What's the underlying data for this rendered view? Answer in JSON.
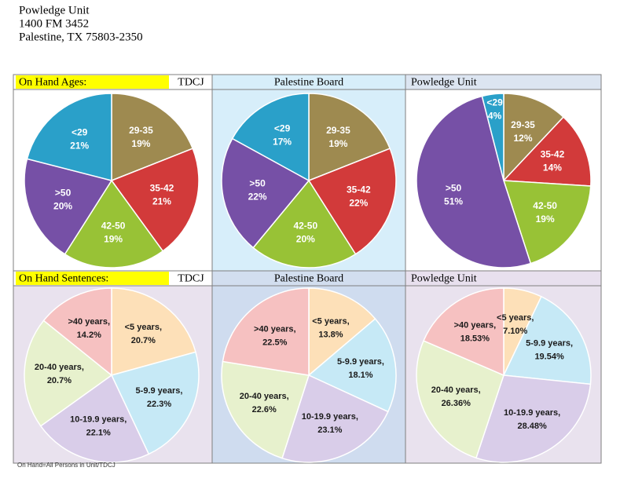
{
  "header": {
    "lines": [
      "Powledge Unit",
      "1400 FM 3452",
      "Palestine, TX 75803-2350"
    ]
  },
  "sections": [
    {
      "label": "On Hand Ages:"
    },
    {
      "label": "On Hand Sentences:"
    }
  ],
  "chart_data": [
    {
      "type": "pie",
      "title": "TDCJ",
      "categories": [
        "29-35",
        "35-42",
        "42-50",
        ">50",
        "<29"
      ],
      "values": [
        19,
        21,
        19,
        20,
        21
      ],
      "value_labels": [
        "19%",
        "21%",
        "19%",
        "20%",
        "21%"
      ],
      "colors": [
        "#9e8a50",
        "#d23a3a",
        "#98c236",
        "#7650a6",
        "#2aa0c9"
      ],
      "label_color": "#ffffff"
    },
    {
      "type": "pie",
      "title": "Palestine Board",
      "categories": [
        "29-35",
        "35-42",
        "42-50",
        ">50",
        "<29"
      ],
      "values": [
        19,
        22,
        20,
        22,
        17
      ],
      "value_labels": [
        "19%",
        "22%",
        "20%",
        "22%",
        "17%"
      ],
      "colors": [
        "#9e8a50",
        "#d23a3a",
        "#98c236",
        "#7650a6",
        "#2aa0c9"
      ],
      "label_color": "#ffffff"
    },
    {
      "type": "pie",
      "title": "Powledge Unit",
      "categories": [
        "29-35",
        "35-42",
        "42-50",
        ">50",
        "<29"
      ],
      "values": [
        12,
        14,
        19,
        51,
        4
      ],
      "value_labels": [
        "12%",
        "14%",
        "19%",
        "51%",
        "4%"
      ],
      "colors": [
        "#9e8a50",
        "#d23a3a",
        "#98c236",
        "#7650a6",
        "#2aa0c9"
      ],
      "label_color": "#ffffff"
    },
    {
      "type": "pie",
      "title": "TDCJ",
      "categories": [
        "<5 years,",
        "5-9.9 years,",
        "10-19.9 years,",
        "20-40 years,",
        ">40 years,"
      ],
      "values": [
        20.7,
        22.3,
        22.1,
        20.7,
        14.2
      ],
      "value_labels": [
        "20.7%",
        "22.3%",
        "22.1%",
        "20.7%",
        "14.2%"
      ],
      "colors": [
        "#fde0b8",
        "#c6e9f6",
        "#d9cde9",
        "#e7f1cd",
        "#f6c1c1"
      ],
      "label_color": "#1a1a1a"
    },
    {
      "type": "pie",
      "title": "Palestine Board",
      "categories": [
        "<5 years,",
        "5-9.9 years,",
        "10-19.9 years,",
        "20-40 years,",
        ">40 years,"
      ],
      "values": [
        13.8,
        18.1,
        23.1,
        22.6,
        22.5
      ],
      "value_labels": [
        "13.8%",
        "18.1%",
        "23.1%",
        "22.6%",
        "22.5%"
      ],
      "colors": [
        "#fde0b8",
        "#c6e9f6",
        "#d9cde9",
        "#e7f1cd",
        "#f6c1c1"
      ],
      "label_color": "#1a1a1a"
    },
    {
      "type": "pie",
      "title": "Powledge Unit",
      "categories": [
        "<5 years,",
        "5-9.9 years,",
        "10-19.9 years,",
        "20-40 years,",
        ">40 years,"
      ],
      "values": [
        7.1,
        19.54,
        28.48,
        26.36,
        18.53
      ],
      "value_labels": [
        "7.10%",
        "19.54%",
        "28.48%",
        "26.36%",
        "18.53%"
      ],
      "colors": [
        "#fde0b8",
        "#c6e9f6",
        "#d9cde9",
        "#e7f1cd",
        "#f6c1c1"
      ],
      "label_color": "#1a1a1a"
    }
  ],
  "footnote": "On Hand=All Persons in Unit/TDCJ"
}
